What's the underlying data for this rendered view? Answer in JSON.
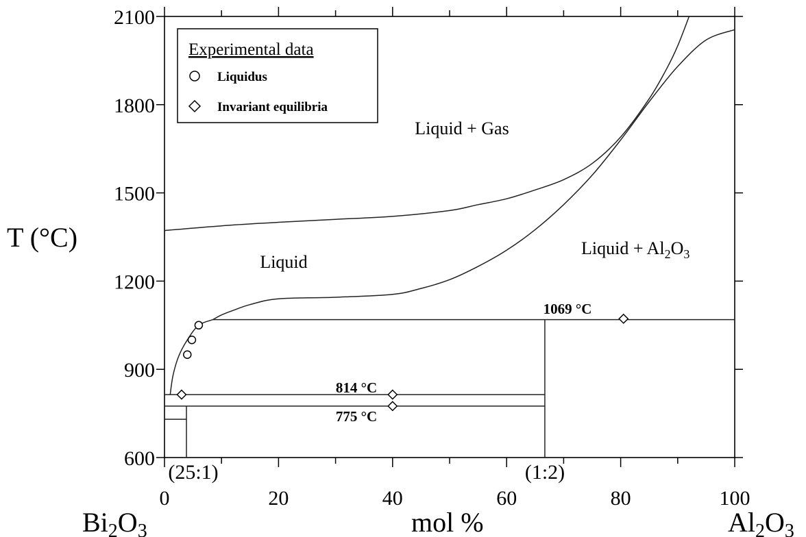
{
  "chart_data": {
    "type": "line",
    "title": "",
    "xlabel": "mol %",
    "ylabel": "T (°C)",
    "xlim": [
      0,
      100
    ],
    "ylim": [
      600,
      2100
    ],
    "x_ticks": [
      0,
      20,
      40,
      60,
      80,
      100
    ],
    "y_ticks": [
      600,
      900,
      1200,
      1500,
      1800,
      2100
    ],
    "x_tick_labels": [
      "0",
      "20",
      "40",
      "60",
      "80",
      "100"
    ],
    "y_tick_labels": [
      "600",
      "900",
      "1200",
      "1500",
      "1800",
      "2100"
    ],
    "left_component": {
      "base": "Bi",
      "sub1": "2",
      "mid": "O",
      "sub2": "3"
    },
    "right_component": {
      "base": "Al",
      "sub1": "2",
      "mid": "O",
      "sub2": "3"
    },
    "compound_labels": [
      {
        "label": "(25:1)",
        "x": 3.85
      },
      {
        "label": "(1:2)",
        "x": 66.7
      }
    ],
    "legend": {
      "title": "Experimental data",
      "items": [
        {
          "marker": "circle",
          "label": "Liquidus"
        },
        {
          "marker": "diamond",
          "label": "Invariant equilibria"
        }
      ],
      "position": "top-left"
    },
    "regions": [
      {
        "label": "Liquid + Gas",
        "x": 46,
        "y": 1820
      },
      {
        "label": "Liquid",
        "x": 21,
        "y": 1260
      },
      {
        "label_parts": {
          "base": "Liquid + Al",
          "sub1": "2",
          "mid": "O",
          "sub2": "3"
        },
        "x": 88,
        "y": 1320
      }
    ],
    "isotherms": [
      {
        "label": "1069 °C",
        "temperature": 1069,
        "x_from": 8.5,
        "x_to": 100
      },
      {
        "label": "814 °C",
        "temperature": 814,
        "x_from": 0,
        "x_to": 66.7
      },
      {
        "label": "775 °C",
        "temperature": 775,
        "x_from": 0,
        "x_to": 66.7
      }
    ],
    "series": [
      {
        "curve": "gas boundary",
        "x": [
          0,
          10,
          20,
          30,
          40,
          50,
          55,
          60,
          65,
          70,
          75,
          80,
          85,
          88,
          90,
          92
        ],
        "y": [
          1372,
          1388,
          1400,
          1410,
          1420,
          1440,
          1460,
          1480,
          1510,
          1545,
          1600,
          1690,
          1820,
          1920,
          2000,
          2100
        ]
      },
      {
        "curve": "Al2O3 liquidus",
        "x": [
          8.5,
          10,
          12,
          15,
          20,
          30,
          40,
          45,
          50,
          55,
          60,
          65,
          70,
          75,
          80,
          85,
          90,
          95,
          100
        ],
        "y": [
          1069,
          1085,
          1100,
          1120,
          1140,
          1145,
          1155,
          1175,
          1205,
          1250,
          1305,
          1375,
          1460,
          1560,
          1680,
          1810,
          1930,
          2020,
          2055
        ]
      },
      {
        "curve": "Bi2O3-rich liquidus",
        "x": [
          1.0,
          1.5,
          2.5,
          4.0,
          6.0,
          8.5
        ],
        "y": [
          814,
          880,
          945,
          1000,
          1050,
          1069
        ]
      }
    ],
    "vertical_lines": [
      {
        "x": 3.85,
        "y_from": 600,
        "y_to": 775
      },
      {
        "x": 66.7,
        "y_from": 600,
        "y_to": 1069
      }
    ],
    "short_lines": [
      {
        "temperature": 730,
        "x_from": 0,
        "x_to": 3.85
      }
    ],
    "points": {
      "liquidus_circles": [
        {
          "x": 4.0,
          "y": 950
        },
        {
          "x": 4.8,
          "y": 1000
        },
        {
          "x": 6.0,
          "y": 1050
        }
      ],
      "invariant_diamonds": [
        {
          "x": 3.0,
          "y": 814
        },
        {
          "x": 40,
          "y": 814
        },
        {
          "x": 40,
          "y": 775
        },
        {
          "x": 80.5,
          "y": 1072
        }
      ]
    },
    "grid": false
  }
}
